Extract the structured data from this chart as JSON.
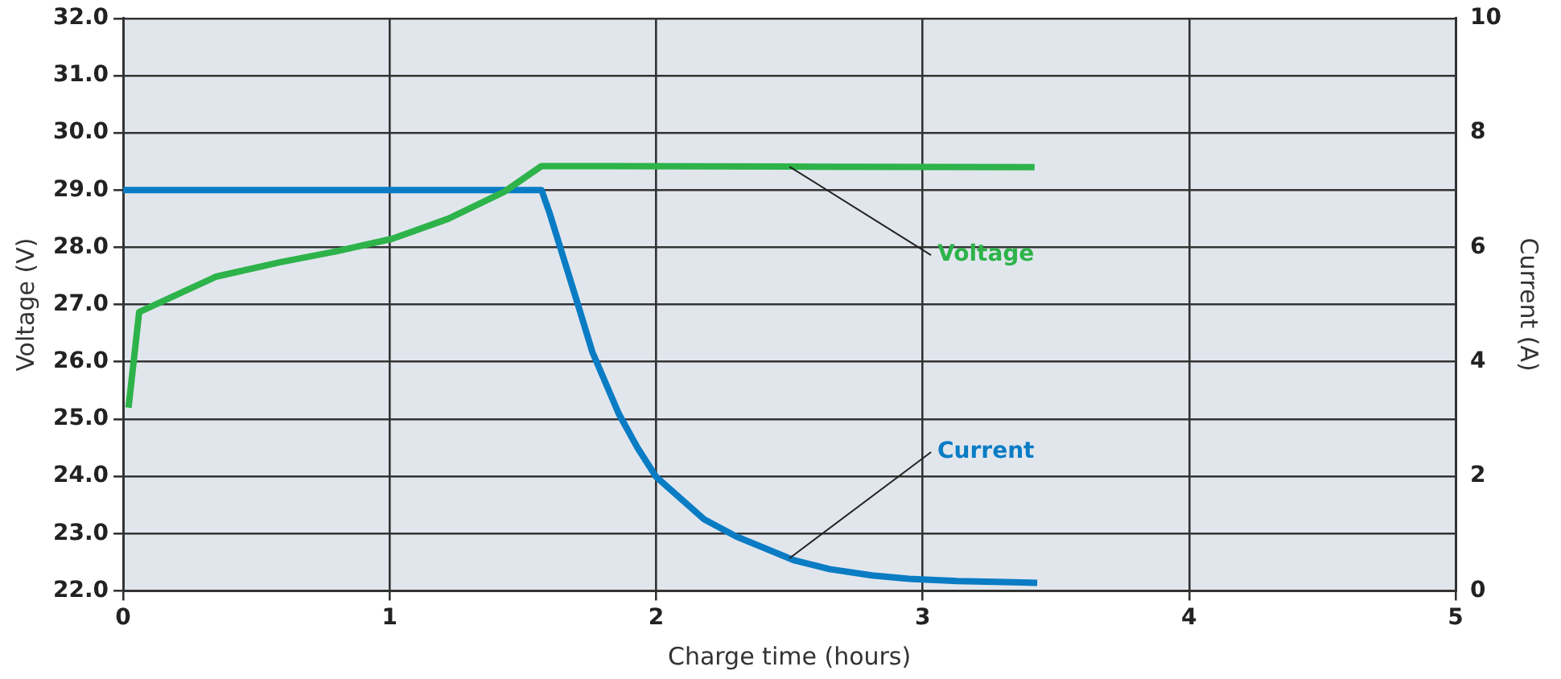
{
  "chart_data": {
    "type": "line",
    "xlabel": "Charge time (hours)",
    "ylabel": "Voltage (V)",
    "y2label": "Current (A)",
    "xlim": [
      0,
      5
    ],
    "xticks": [
      0,
      1,
      2,
      3,
      4,
      5
    ],
    "ylim": [
      22,
      32
    ],
    "yticks": [
      {
        "value": 22,
        "label": "22.0"
      },
      {
        "value": 23,
        "label": "23.0"
      },
      {
        "value": 24,
        "label": "24.0"
      },
      {
        "value": 25,
        "label": "25.0"
      },
      {
        "value": 26,
        "label": "26.0"
      },
      {
        "value": 27,
        "label": "27.0"
      },
      {
        "value": 28,
        "label": "28.0"
      },
      {
        "value": 29,
        "label": "29.0"
      },
      {
        "value": 30,
        "label": "30.0"
      },
      {
        "value": 31,
        "label": "31.0"
      },
      {
        "value": 32,
        "label": "32.0"
      }
    ],
    "y2lim": [
      0,
      10
    ],
    "y2ticks": [
      0,
      2,
      4,
      6,
      8,
      10
    ],
    "grid": true,
    "legend": false,
    "marker": "none",
    "line_style": "solid",
    "series": [
      {
        "name": "Voltage",
        "color": "#2db34a",
        "x": [
          0.02,
          0.06,
          0.35,
          0.59,
          0.8,
          1.01,
          1.22,
          1.43,
          1.57,
          2.5,
          3.42
        ],
        "values": [
          25.2,
          26.87,
          27.49,
          27.74,
          27.93,
          28.15,
          28.5,
          28.97,
          29.42,
          29.41,
          29.4
        ]
      },
      {
        "name": "Current",
        "color": "#0a7cc4",
        "axis": "y2",
        "x": [
          0,
          1.57,
          1.6,
          1.65,
          1.7,
          1.76,
          1.86,
          1.93,
          2.0,
          2.18,
          2.3,
          2.52,
          2.65,
          2.81,
          2.95,
          3.13,
          3.43
        ],
        "values": [
          7,
          7,
          6.6,
          5.85,
          5.1,
          4.18,
          3.09,
          2.5,
          1.99,
          1.25,
          0.95,
          0.53,
          0.38,
          0.27,
          0.21,
          0.17,
          0.14
        ]
      }
    ]
  }
}
